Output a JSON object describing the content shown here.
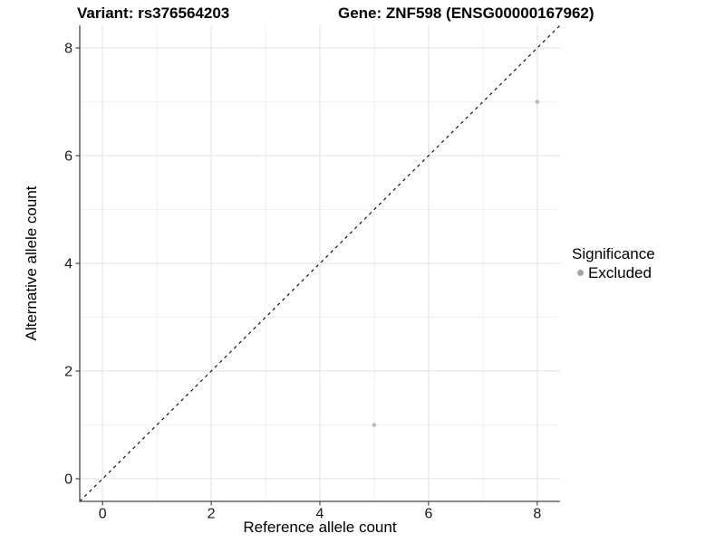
{
  "chart_data": {
    "type": "scatter",
    "title_left": "Variant: rs376564203",
    "title_right": "Gene: ZNF598 (ENSG00000167962)",
    "xlabel": "Reference allele count",
    "ylabel": "Alternative allele count",
    "xlim": [
      -0.42,
      8.42
    ],
    "ylim": [
      -0.42,
      8.42
    ],
    "x_ticks": [
      0,
      2,
      4,
      6,
      8
    ],
    "y_ticks": [
      0,
      2,
      4,
      6,
      8
    ],
    "x_minor_ticks": [
      1,
      3,
      5,
      7
    ],
    "y_minor_ticks": [
      1,
      3,
      5,
      7
    ],
    "grid": true,
    "identity_line": {
      "slope": 1,
      "intercept": 0,
      "style": "dashed",
      "color": "#000000"
    },
    "series": [
      {
        "name": "Excluded",
        "color": "#b9b9b9",
        "points": [
          {
            "x": 5,
            "y": 1
          },
          {
            "x": 8,
            "y": 7
          }
        ]
      }
    ],
    "legend": {
      "title": "Significance",
      "position": "right",
      "items": [
        {
          "label": "Excluded",
          "color": "#a6a6a6"
        }
      ]
    },
    "colors": {
      "background": "#ffffff",
      "grid_major": "#e7e7e7",
      "grid_minor": "#f1f1f1",
      "axis_line": "#474747",
      "tick_label": "#1a1a1a",
      "point": "#b9b9b9",
      "legend_dot": "#a6a6a6"
    }
  }
}
